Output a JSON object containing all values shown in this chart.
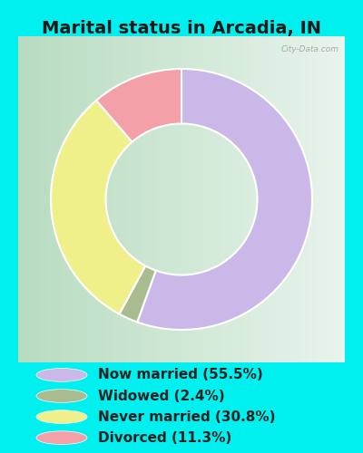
{
  "title": "Marital status in Arcadia, IN",
  "slices": [
    55.5,
    2.4,
    30.8,
    11.3
  ],
  "labels": [
    "Now married (55.5%)",
    "Widowed (2.4%)",
    "Never married (30.8%)",
    "Divorced (11.3%)"
  ],
  "colors": [
    "#c9b8e8",
    "#a8bc8f",
    "#f0f08a",
    "#f4a0a8"
  ],
  "bg_color_cyan": "#00f0f0",
  "bg_color_chart_left": "#b8dcc0",
  "bg_color_chart_right": "#e8f4ec",
  "legend_colors": [
    "#c9b8e8",
    "#a8bc8f",
    "#f0f08a",
    "#f4a0a8"
  ],
  "title_fontsize": 14,
  "legend_fontsize": 11,
  "donut_width": 0.42,
  "start_angle": 90
}
